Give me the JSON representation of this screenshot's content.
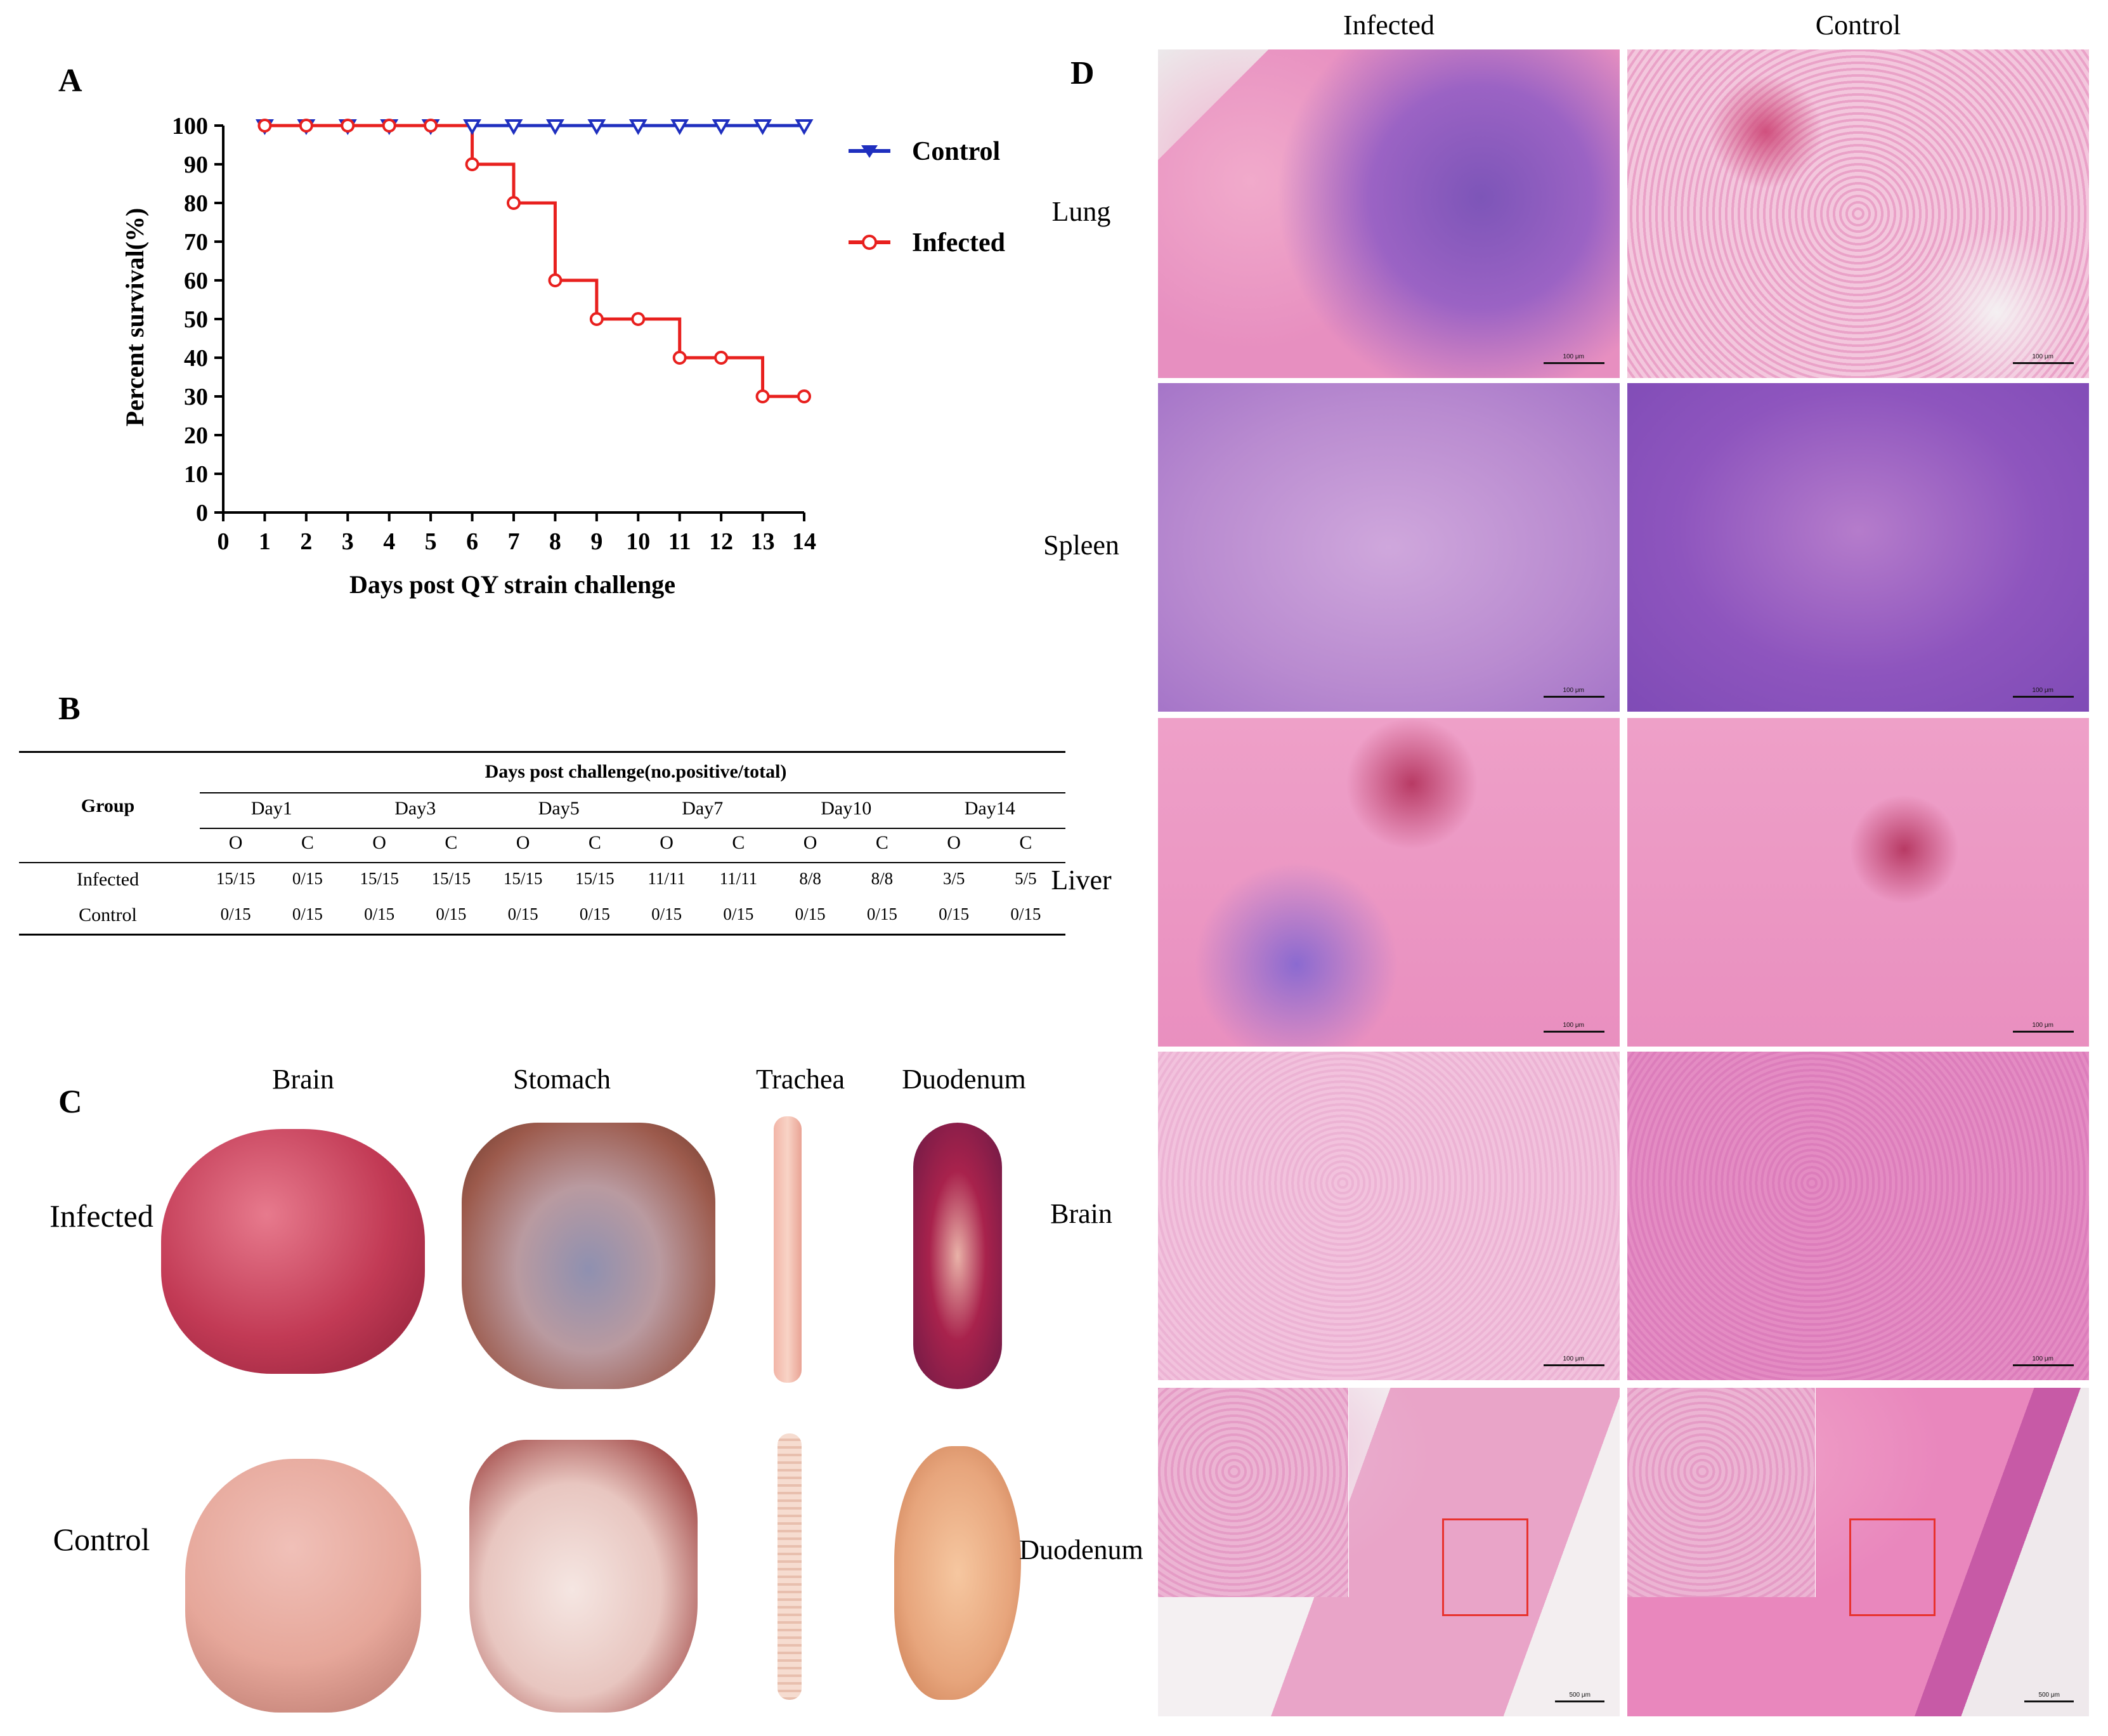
{
  "panels": {
    "A": "A",
    "B": "B",
    "C": "C",
    "D": "D"
  },
  "chart_data": {
    "type": "line",
    "step": true,
    "title": "",
    "xlabel": "Days post QY strain challenge",
    "ylabel": "Percent survival(%)",
    "xlim": [
      0,
      14
    ],
    "ylim": [
      0,
      100
    ],
    "x_ticks": [
      0,
      1,
      2,
      3,
      4,
      5,
      6,
      7,
      8,
      9,
      10,
      11,
      12,
      13,
      14
    ],
    "y_ticks": [
      0,
      10,
      20,
      30,
      40,
      50,
      60,
      70,
      80,
      90,
      100
    ],
    "legend_position": "right",
    "series": [
      {
        "name": "Control",
        "color": "#1f2fbf",
        "marker": "triangle-down",
        "x": [
          1,
          2,
          3,
          4,
          5,
          6,
          7,
          8,
          9,
          10,
          11,
          12,
          13,
          14
        ],
        "y": [
          100,
          100,
          100,
          100,
          100,
          100,
          100,
          100,
          100,
          100,
          100,
          100,
          100,
          100
        ]
      },
      {
        "name": "Infected",
        "color": "#e8201e",
        "marker": "circle",
        "x": [
          1,
          2,
          3,
          4,
          5,
          6,
          7,
          8,
          9,
          10,
          11,
          12,
          13,
          14
        ],
        "y": [
          100,
          100,
          100,
          100,
          100,
          90,
          80,
          60,
          50,
          50,
          40,
          40,
          30,
          30
        ]
      }
    ]
  },
  "table": {
    "group_header": "Group",
    "span_header": "Days post challenge(no.positive/total)",
    "days": [
      "Day1",
      "Day3",
      "Day5",
      "Day7",
      "Day10",
      "Day14"
    ],
    "subcols": [
      "O",
      "C"
    ],
    "rows": [
      {
        "group": "Infected",
        "cells": [
          "15/15",
          "0/15",
          "15/15",
          "15/15",
          "15/15",
          "15/15",
          "11/11",
          "11/11",
          "8/8",
          "8/8",
          "3/5",
          "5/5"
        ]
      },
      {
        "group": "Control",
        "cells": [
          "0/15",
          "0/15",
          "0/15",
          "0/15",
          "0/15",
          "0/15",
          "0/15",
          "0/15",
          "0/15",
          "0/15",
          "0/15",
          "0/15"
        ]
      }
    ]
  },
  "organs_photo": {
    "columns": [
      "Brain",
      "Stomach",
      "Trachea",
      "Duodenum"
    ],
    "rows": [
      "Infected",
      "Control"
    ]
  },
  "histology": {
    "columns": [
      "Infected",
      "Control"
    ],
    "rows": [
      "Lung",
      "Spleen",
      "Liver",
      "Brain",
      "Duodenum"
    ],
    "scale_small": "100 μm",
    "scale_large": "500 μm"
  },
  "colors": {
    "tissue_pink": "#e78fc0",
    "tissue_purple": "#9b63c4",
    "infected_photo": "#c23a55",
    "control_photo": "#e6a79a"
  }
}
